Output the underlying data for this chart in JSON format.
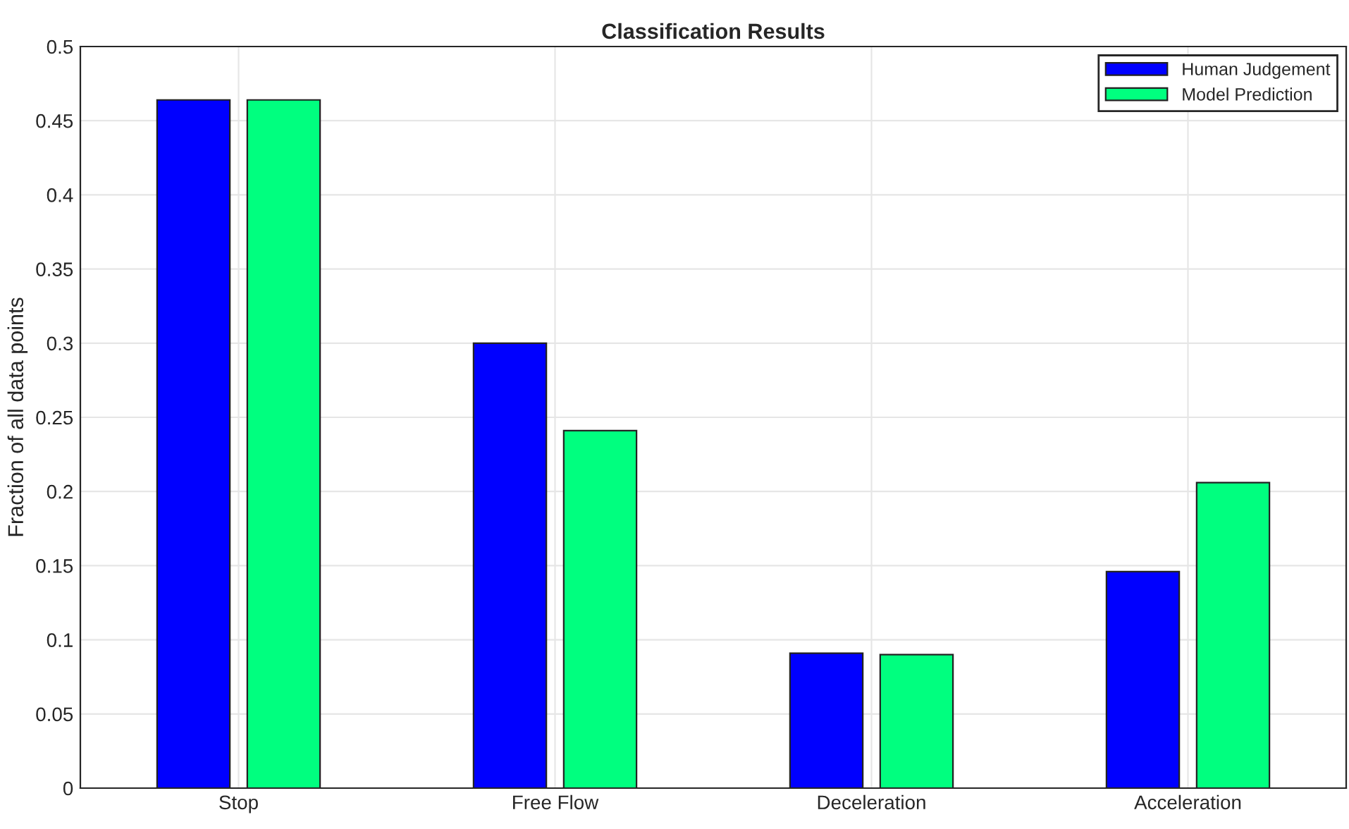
{
  "chart_data": {
    "type": "bar",
    "title": "Classification Results",
    "ylabel": "Fraction of all data points",
    "categories": [
      "Stop",
      "Free Flow",
      "Deceleration",
      "Acceleration"
    ],
    "series": [
      {
        "name": "Human Judgement",
        "color": "#0000ff",
        "values": [
          0.464,
          0.3,
          0.091,
          0.146
        ]
      },
      {
        "name": "Model Prediction",
        "color": "#00ff7f",
        "values": [
          0.464,
          0.241,
          0.09,
          0.206
        ]
      }
    ],
    "ylim": [
      0,
      0.5
    ],
    "yticks": [
      0,
      0.05,
      0.1,
      0.15,
      0.2,
      0.25,
      0.3,
      0.35,
      0.4,
      0.45,
      0.5
    ],
    "grid": true,
    "legend": "top right"
  }
}
